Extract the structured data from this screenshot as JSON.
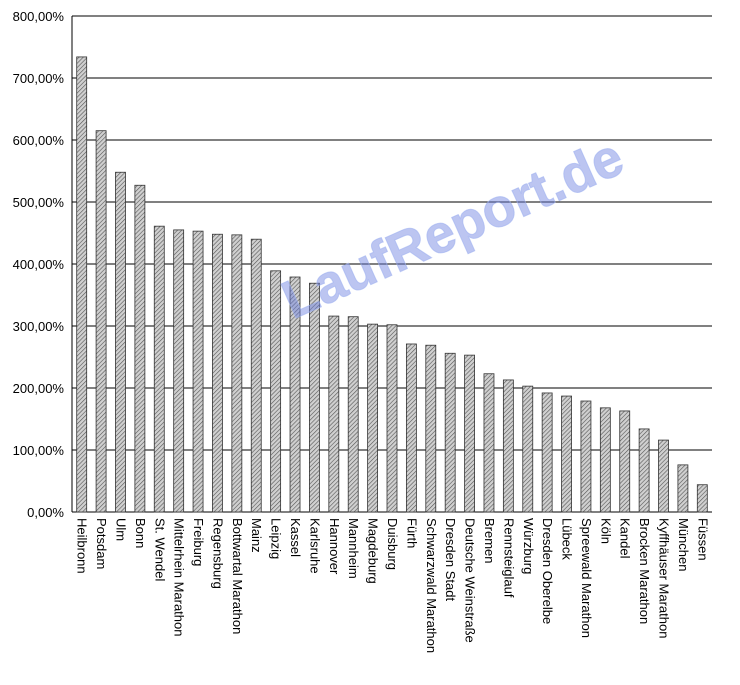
{
  "chart_data": {
    "type": "bar",
    "categories": [
      "Heilbronn",
      "Potsdam",
      "Ulm",
      "Bonn",
      "St. Wendel",
      "Mittelrhein Marathon",
      "Freiburg",
      "Regensburg",
      "Bottwartal Marathon",
      "Mainz",
      "Leipzig",
      "Kassel",
      "Karlsruhe",
      "Hannover",
      "Mannheim",
      "Magdeburg",
      "Duisburg",
      "Fürth",
      "Schwarzwald Marathon",
      "Dresden Stadt",
      "Deutsche Weinstraße",
      "Bremen",
      "Rennsteiglauf",
      "Würzburg",
      "Dresden Oberelbe",
      "Lübeck",
      "Spreewald Marathon",
      "Köln",
      "Kandel",
      "Brocken Marathon",
      "Kyffhäuser Marathon",
      "München",
      "Füssen"
    ],
    "values": [
      734,
      615,
      548,
      527,
      461,
      455,
      453,
      448,
      447,
      440,
      389,
      379,
      369,
      316,
      315,
      303,
      302,
      271,
      269,
      256,
      253,
      223,
      213,
      203,
      192,
      187,
      179,
      168,
      163,
      134,
      116,
      76,
      44
    ],
    "color": "#555555",
    "ylim": [
      0,
      800
    ],
    "yticks": [
      {
        "value": 0,
        "label": "0,00%"
      },
      {
        "value": 100,
        "label": "100,00%"
      },
      {
        "value": 200,
        "label": "200,00%"
      },
      {
        "value": 300,
        "label": "300,00%"
      },
      {
        "value": 400,
        "label": "400,00%"
      },
      {
        "value": 500,
        "label": "500,00%"
      },
      {
        "value": 600,
        "label": "600,00%"
      },
      {
        "value": 700,
        "label": "700,00%"
      },
      {
        "value": 800,
        "label": "800,00%"
      }
    ],
    "grid": true,
    "watermark": "LaufReport.de"
  }
}
